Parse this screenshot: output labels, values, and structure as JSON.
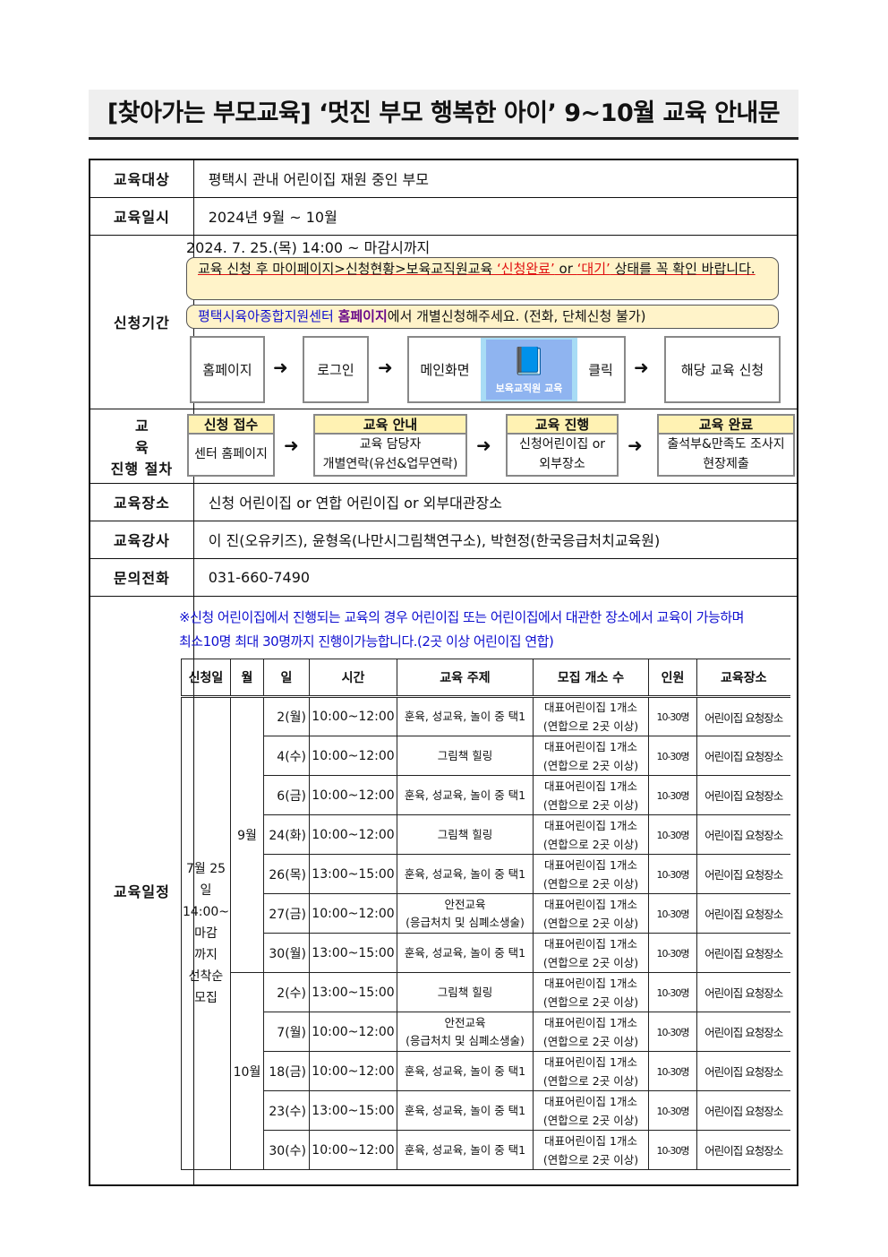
{
  "title": "[찾아가는 부모교육] ‘멋진 부모 행복한 아이’ 9~10월 교육 안내문",
  "rows": {
    "target": {
      "label": "교육대상",
      "value": "평택시 관내 어린이집 재원 중인 부모"
    },
    "date": {
      "label": "교육일시",
      "value": "2024년 9월 ~ 10월"
    },
    "apply": {
      "label": "신청기간",
      "period": "2024. 7. 25.(목) 14:00 ~ 마감시까지",
      "notice1_a": "교육 신청 후 마이페이지>신청현황>보육교직원교육 ",
      "notice1_b": "‘신청완료’",
      "notice1_c": " or ",
      "notice1_d": "‘대기’",
      "notice1_e": " 상태를 꼭 확인 바랍니다.",
      "notice2_a": "평택시육아종합지원센터 ",
      "notice2_b": "홈페이지",
      "notice2_c": "에서 개별신청해주세요. (전화, 단체신청 불가)",
      "steps": [
        "홈페이지",
        "로그인",
        "메인화면",
        "클릭",
        "해당 교육 신청"
      ],
      "banner_label": "보육교직원 교육"
    },
    "process": {
      "label1": "교 육",
      "label2": "진행 절차",
      "steps": [
        {
          "head": "신청 접수",
          "body": [
            "센터 홈페이지"
          ]
        },
        {
          "head": "교육 안내",
          "body": [
            "교육 담당자",
            "개별연락(유선&업무연락)"
          ]
        },
        {
          "head": "교육 진행",
          "body": [
            "신청어린이집 or",
            "외부장소"
          ]
        },
        {
          "head": "교육 완료",
          "body": [
            "출석부&만족도 조사지",
            "현장제출"
          ]
        }
      ]
    },
    "place": {
      "label": "교육장소",
      "value": "신청 어린이집 or 연합 어린이집 or 외부대관장소"
    },
    "instructor": {
      "label": "교육강사",
      "value": "이 진(오유키즈), 윤형옥(나만시그림책연구소), 박현정(한국응급처치교육원)"
    },
    "contact": {
      "label": "문의전화",
      "value": "031-660-7490"
    },
    "schedule": {
      "label": "교육일정",
      "note1": "※신청 어린이집에서 진행되는 교육의 경우 어린이집 또는 어린이집에서 대관한 장소에서 교육이 가능하며",
      "note2": "최소10명 최대 30명까지 진행이가능합니다.(2곳 이상 어린이집 연합)"
    }
  },
  "table": {
    "headers": [
      "신청일",
      "월",
      "일",
      "시간",
      "교육 주제",
      "모집 개소 수",
      "인원",
      "교육장소"
    ],
    "apply_date": [
      "7월 25일",
      "14:00~",
      "마감",
      "까지",
      "선착순",
      "모집"
    ],
    "months": [
      {
        "month": "9월",
        "count": 7
      },
      {
        "month": "10월",
        "count": 5
      }
    ],
    "rows": [
      [
        "2(월)",
        "10:00~12:00",
        "훈육, 성교육, 놀이 중 택1"
      ],
      [
        "4(수)",
        "10:00~12:00",
        "그림책 힐링"
      ],
      [
        "6(금)",
        "10:00~12:00",
        "훈육, 성교육, 놀이 중 택1"
      ],
      [
        "24(화)",
        "10:00~12:00",
        "그림책 힐링"
      ],
      [
        "26(목)",
        "13:00~15:00",
        "훈육, 성교육, 놀이 중 택1"
      ],
      [
        "27(금)",
        "10:00~12:00",
        "안전교육\n(응급처치 및 심폐소생술)"
      ],
      [
        "30(월)",
        "13:00~15:00",
        "훈육, 성교육, 놀이 중 택1"
      ],
      [
        "2(수)",
        "13:00~15:00",
        "그림책 힐링"
      ],
      [
        "7(월)",
        "10:00~12:00",
        "안전교육\n(응급처치 및 심폐소생술)"
      ],
      [
        "18(금)",
        "10:00~12:00",
        "훈육, 성교육, 놀이 중 택1"
      ],
      [
        "23(수)",
        "13:00~15:00",
        "훈육, 성교육, 놀이 중 택1"
      ],
      [
        "30(수)",
        "10:00~12:00",
        "훈육, 성교육, 놀이 중 택1"
      ]
    ],
    "sites": "대표어린이집 1개소\n(연합으로 2곳 이상)",
    "people": "10-30명",
    "location": "어린이집 요청장소"
  },
  "colors": {
    "note_bg": "#fff3c9",
    "red": "#e01010",
    "blue": "#1010d0",
    "purple": "#6a0a8a",
    "banner": "#8fb4f0"
  }
}
